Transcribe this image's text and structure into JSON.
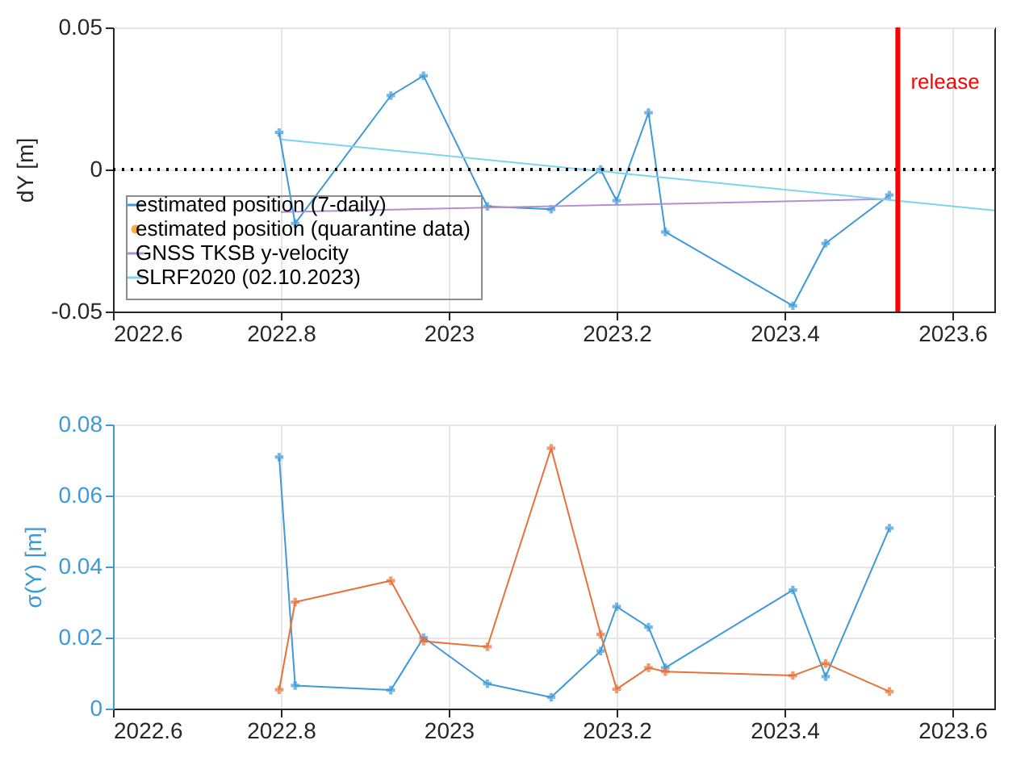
{
  "chart_data": [
    {
      "type": "line",
      "ylabel": "dY [m]",
      "xlim": [
        2022.6,
        2023.65
      ],
      "xticks": [
        2022.6,
        2022.8,
        2023,
        2023.2,
        2023.4,
        2023.6
      ],
      "ylim": [
        -0.05,
        0.05
      ],
      "yticks": [
        -0.05,
        0,
        0.05
      ],
      "grid": true,
      "legend": "bottom left",
      "marker": "cross",
      "x": [
        2022.798,
        2022.817,
        2022.931,
        2022.97,
        2023.046,
        2023.122,
        2023.181,
        2023.2,
        2023.238,
        2023.258,
        2023.41,
        2023.449,
        2023.525
      ],
      "series": [
        {
          "name": "estimated position (7-daily)",
          "color": "#3d9ad8",
          "values": [
            0.013,
            -0.019,
            0.026,
            0.033,
            -0.013,
            -0.014,
            0.0,
            -0.011,
            0.02,
            -0.022,
            -0.048,
            -0.026,
            -0.009
          ]
        },
        {
          "name": "estimated position (quarantine data)",
          "type": "scatter",
          "color": "#f5b041",
          "values": [
            null,
            null,
            null,
            null,
            null,
            null,
            null,
            null,
            null,
            null,
            null,
            null,
            null
          ]
        },
        {
          "name": "GNSS TKSB y-velocity",
          "color": "#b48fd0",
          "marker": "none",
          "x": [
            2022.8,
            2023.525
          ],
          "values": [
            -0.015,
            -0.0104
          ]
        },
        {
          "name": "SLRF2020 (02.10.2023)",
          "color": "#7fd3ee",
          "marker": "none",
          "x": [
            2022.8,
            2023.65
          ],
          "values": [
            0.0106,
            -0.0144
          ]
        }
      ],
      "ref_lines": [
        {
          "axis": "y",
          "value": 0,
          "color": "#000000",
          "line_style": "dotted"
        },
        {
          "axis": "x",
          "value": 2023.535,
          "label": "release",
          "color": "#ff0000"
        }
      ]
    },
    {
      "type": "line",
      "ylabel": "σ(Y) [m]",
      "xlim": [
        2022.6,
        2023.65
      ],
      "xticks": [
        2022.6,
        2022.8,
        2023,
        2023.2,
        2023.4,
        2023.6
      ],
      "ylim": [
        0,
        0.08
      ],
      "yticks": [
        0,
        0.02,
        0.04,
        0.06,
        0.08
      ],
      "grid": true,
      "marker": "cross",
      "x": [
        2022.798,
        2022.817,
        2022.931,
        2022.97,
        2023.046,
        2023.122,
        2023.181,
        2023.2,
        2023.238,
        2023.258,
        2023.41,
        2023.449,
        2023.525
      ],
      "series": [
        {
          "color": "#3d9ad8",
          "values": [
            0.0708,
            0.0065,
            0.0052,
            0.02,
            0.007,
            0.0032,
            0.0162,
            0.0287,
            0.0229,
            0.0115,
            0.0334,
            0.009,
            0.0508
          ]
        },
        {
          "color": "#e8703a",
          "values": [
            0.0053,
            0.03,
            0.036,
            0.019,
            0.0174,
            0.0733,
            0.0209,
            0.0055,
            0.0115,
            0.0104,
            0.0093,
            0.0127,
            0.0048
          ]
        }
      ]
    }
  ]
}
